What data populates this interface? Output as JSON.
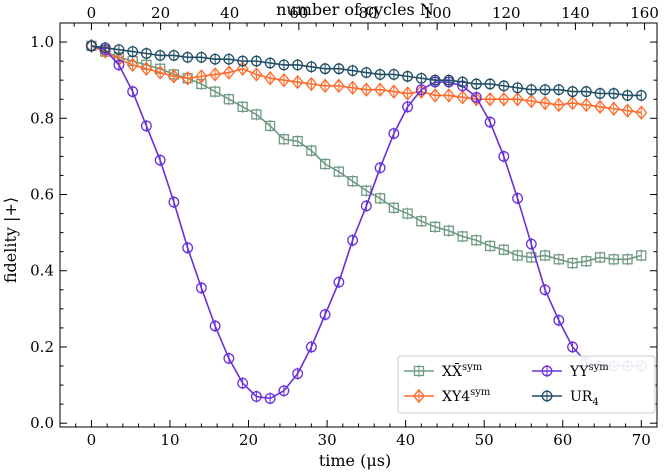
{
  "chart_data": {
    "type": "line",
    "xlabel": "time (μs)",
    "ylabel": "fidelity |+⟩",
    "top_xlabel": "number of cycles N",
    "xlim": [
      -4,
      72
    ],
    "ylim": [
      -0.01,
      1.05
    ],
    "top_xlim": [
      -9.1,
      163.6
    ],
    "x_ticks": [
      0,
      10,
      20,
      30,
      40,
      50,
      60,
      70
    ],
    "y_ticks": [
      0.0,
      0.2,
      0.4,
      0.6,
      0.8,
      1.0
    ],
    "top_ticks": [
      0,
      20,
      40,
      60,
      80,
      100,
      120,
      140,
      160
    ],
    "legend_position": "lower-right",
    "series": [
      {
        "name": "XX̄",
        "sup": "sym",
        "color": "#6f9a82",
        "marker": "square",
        "x": [
          0,
          1.75,
          3.5,
          5.25,
          7,
          8.75,
          10.5,
          12.25,
          14,
          15.75,
          17.5,
          19.25,
          21,
          22.75,
          24.5,
          26.25,
          28,
          29.75,
          31.5,
          33.25,
          35,
          36.75,
          38.5,
          40.25,
          42,
          43.75,
          45.5,
          47.25,
          49,
          50.75,
          52.5,
          54.25,
          56,
          57.75,
          59.5,
          61.25,
          63,
          64.75,
          66.5,
          68.25,
          70
        ],
        "y": [
          0.99,
          0.975,
          0.96,
          0.95,
          0.94,
          0.93,
          0.915,
          0.905,
          0.89,
          0.87,
          0.85,
          0.83,
          0.81,
          0.78,
          0.745,
          0.74,
          0.715,
          0.68,
          0.66,
          0.635,
          0.61,
          0.59,
          0.565,
          0.55,
          0.53,
          0.515,
          0.505,
          0.49,
          0.48,
          0.465,
          0.455,
          0.44,
          0.435,
          0.44,
          0.43,
          0.42,
          0.425,
          0.435,
          0.43,
          0.43,
          0.44
        ]
      },
      {
        "name": "XY4",
        "sup": "sym",
        "color": "#ff6a2b",
        "marker": "diamond",
        "x": [
          0,
          1.75,
          3.5,
          5.25,
          7,
          8.75,
          10.5,
          12.25,
          14,
          15.75,
          17.5,
          19.25,
          21,
          22.75,
          24.5,
          26.25,
          28,
          29.75,
          31.5,
          33.25,
          35,
          36.75,
          38.5,
          40.25,
          42,
          43.75,
          45.5,
          47.25,
          49,
          50.75,
          52.5,
          54.25,
          56,
          57.75,
          59.5,
          61.25,
          63,
          64.75,
          66.5,
          68.25,
          70
        ],
        "y": [
          0.99,
          0.975,
          0.955,
          0.94,
          0.93,
          0.92,
          0.91,
          0.905,
          0.91,
          0.915,
          0.92,
          0.93,
          0.915,
          0.905,
          0.9,
          0.895,
          0.89,
          0.885,
          0.885,
          0.88,
          0.875,
          0.875,
          0.87,
          0.865,
          0.87,
          0.86,
          0.86,
          0.855,
          0.85,
          0.85,
          0.85,
          0.85,
          0.845,
          0.84,
          0.835,
          0.84,
          0.835,
          0.83,
          0.825,
          0.82,
          0.815
        ]
      },
      {
        "name": "YY",
        "sup": "sym",
        "color": "#6930d8",
        "marker": "circle",
        "x": [
          0,
          1.75,
          3.5,
          5.25,
          7,
          8.75,
          10.5,
          12.25,
          14,
          15.75,
          17.5,
          19.25,
          21,
          22.75,
          24.5,
          26.25,
          28,
          29.75,
          31.5,
          33.25,
          35,
          36.75,
          38.5,
          40.25,
          42,
          43.75,
          45.5,
          47.25,
          49,
          50.75,
          52.5,
          54.25,
          56,
          57.75,
          59.5,
          61.25,
          63,
          64.75,
          66.5,
          68.25,
          70
        ],
        "y": [
          0.99,
          0.98,
          0.94,
          0.87,
          0.78,
          0.69,
          0.58,
          0.46,
          0.355,
          0.255,
          0.17,
          0.105,
          0.07,
          0.065,
          0.085,
          0.13,
          0.2,
          0.285,
          0.37,
          0.48,
          0.57,
          0.67,
          0.76,
          0.83,
          0.875,
          0.895,
          0.895,
          0.885,
          0.855,
          0.79,
          0.7,
          0.59,
          0.47,
          0.35,
          0.27,
          0.2,
          0.16,
          0.15,
          0.15,
          0.15,
          0.15
        ]
      },
      {
        "name": "UR",
        "sub": "4",
        "color": "#1f4e66",
        "marker": "circle",
        "x": [
          0,
          1.75,
          3.5,
          5.25,
          7,
          8.75,
          10.5,
          12.25,
          14,
          15.75,
          17.5,
          19.25,
          21,
          22.75,
          24.5,
          26.25,
          28,
          29.75,
          31.5,
          33.25,
          35,
          36.75,
          38.5,
          40.25,
          42,
          43.75,
          45.5,
          47.25,
          49,
          50.75,
          52.5,
          54.25,
          56,
          57.75,
          59.5,
          61.25,
          63,
          64.75,
          66.5,
          68.25,
          70
        ],
        "y": [
          0.99,
          0.985,
          0.98,
          0.975,
          0.97,
          0.965,
          0.965,
          0.96,
          0.96,
          0.955,
          0.955,
          0.95,
          0.95,
          0.945,
          0.94,
          0.94,
          0.935,
          0.93,
          0.93,
          0.925,
          0.92,
          0.915,
          0.915,
          0.91,
          0.905,
          0.9,
          0.9,
          0.895,
          0.89,
          0.89,
          0.885,
          0.88,
          0.875,
          0.875,
          0.875,
          0.87,
          0.87,
          0.865,
          0.865,
          0.86,
          0.86
        ]
      }
    ]
  }
}
